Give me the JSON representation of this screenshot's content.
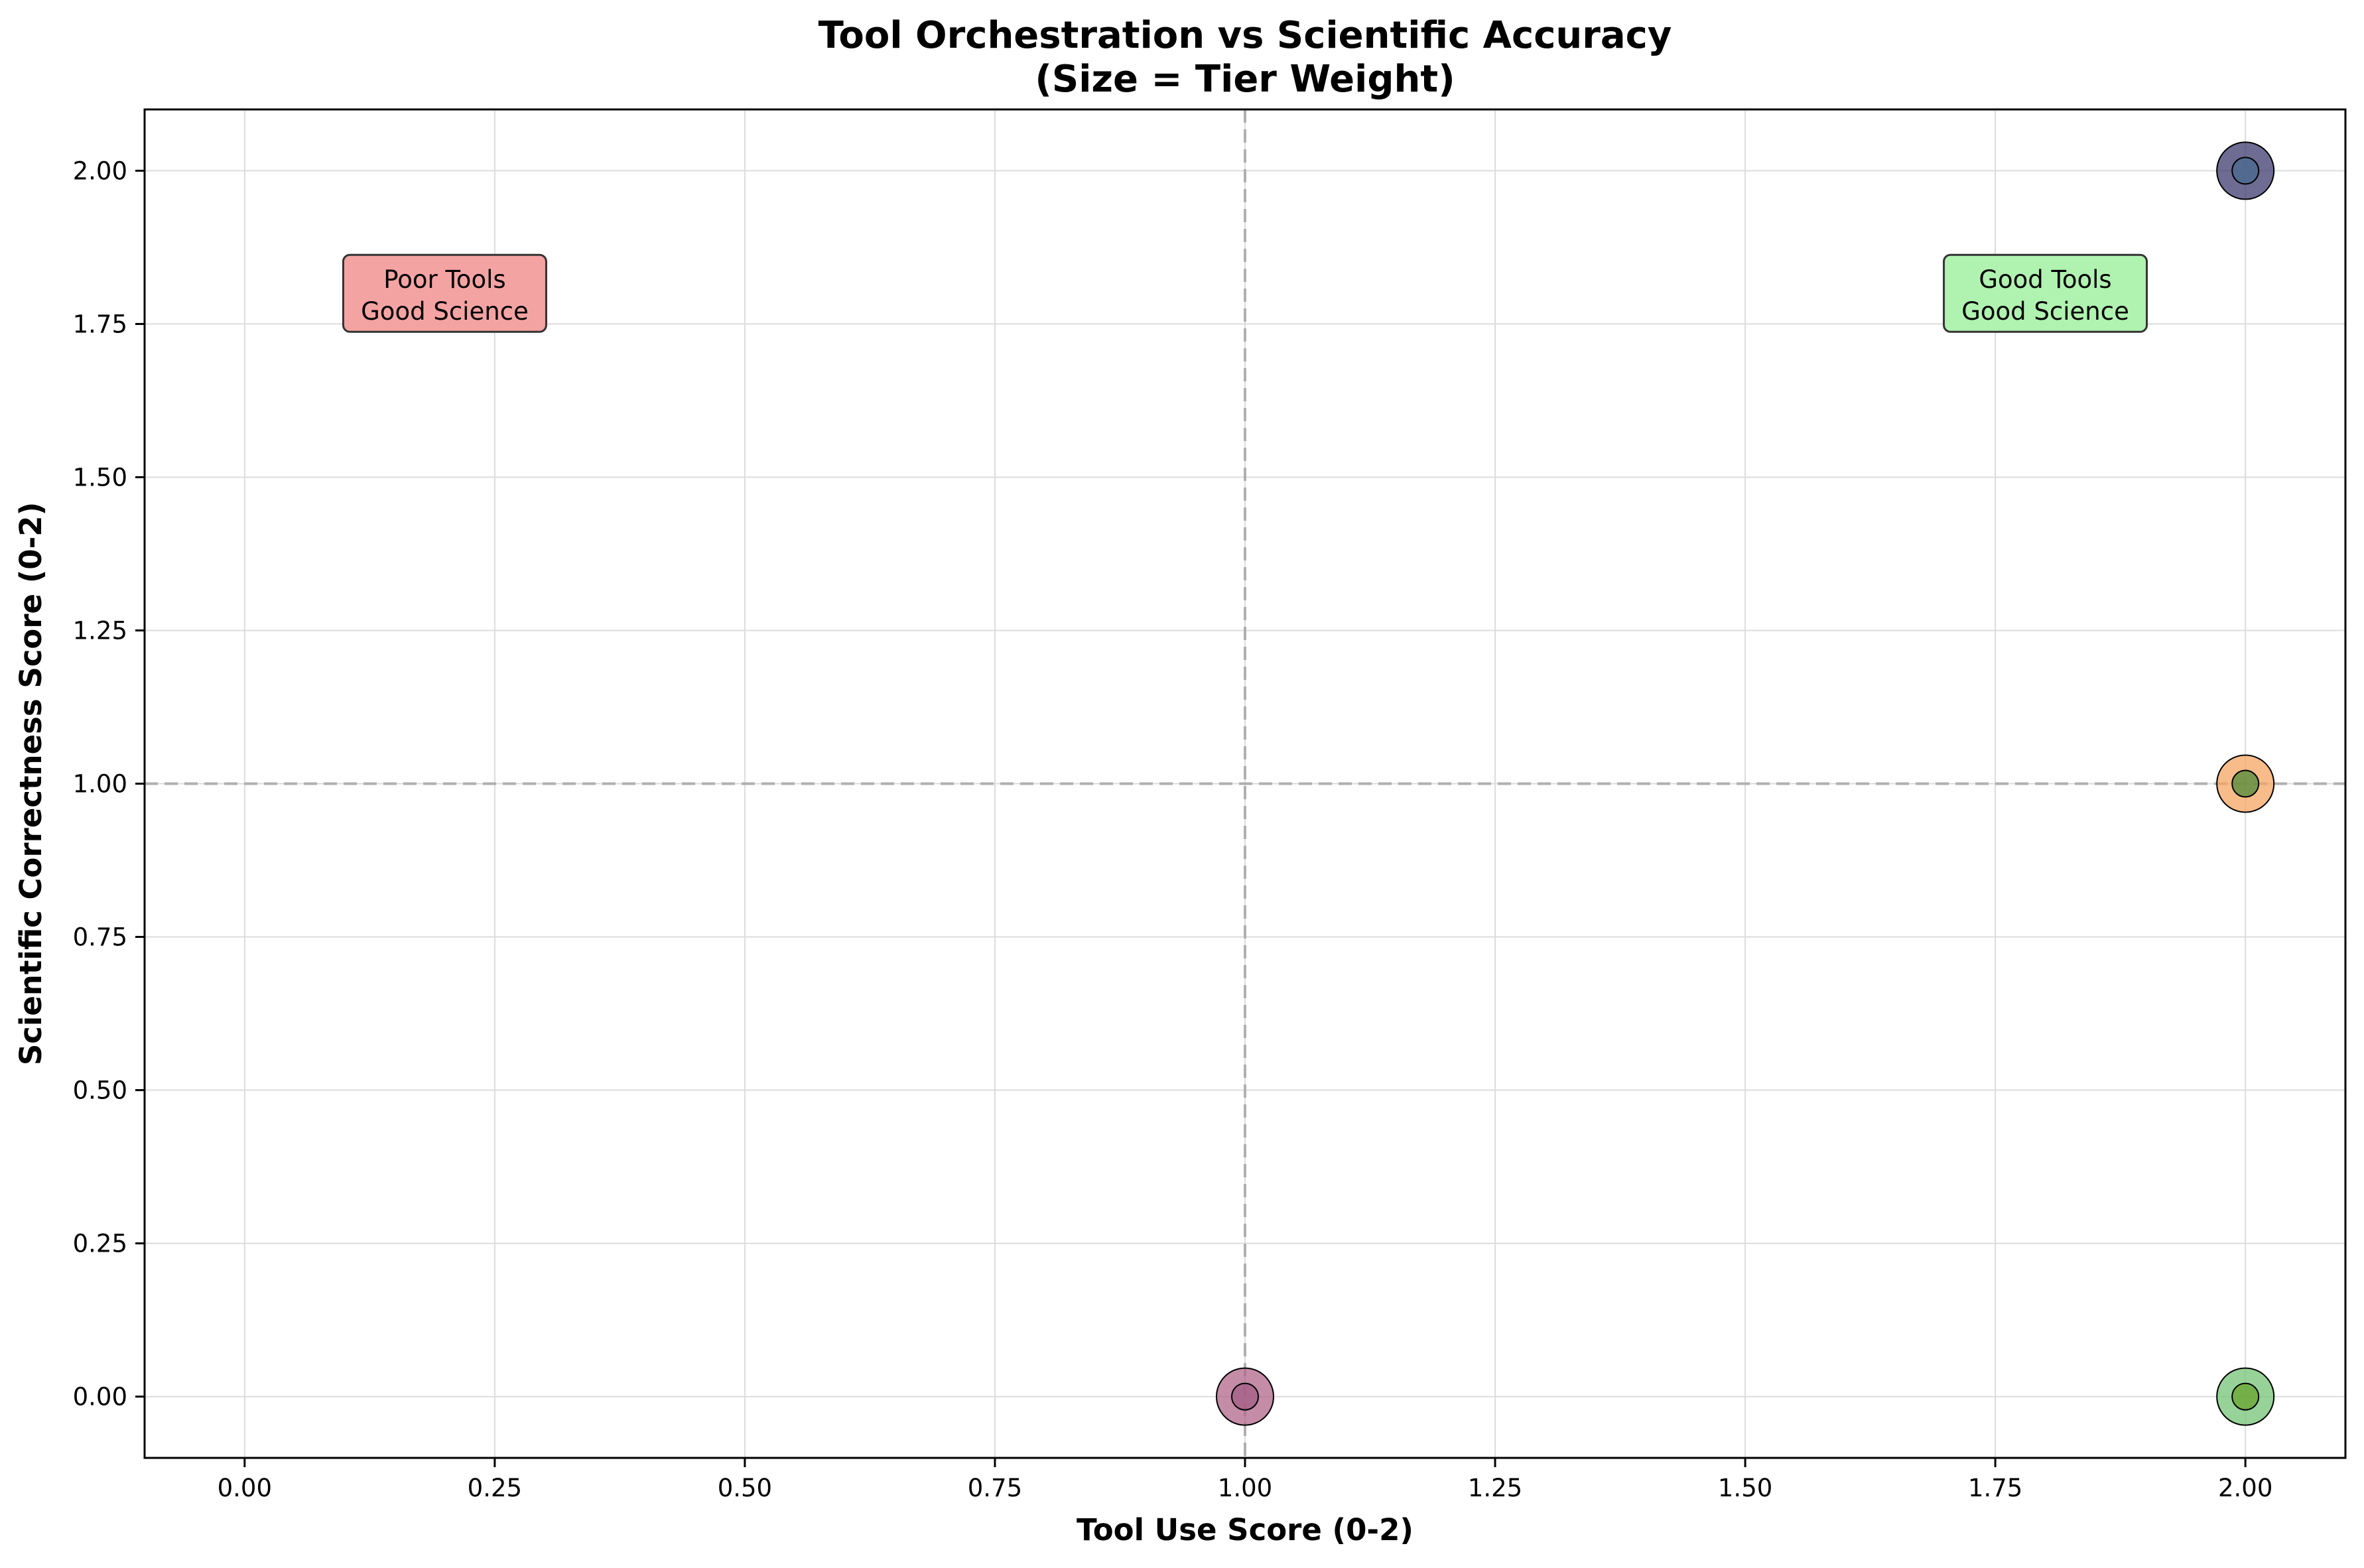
{
  "chart_data": {
    "type": "scatter",
    "title_line1": "Tool Orchestration vs Scientific Accuracy",
    "title_line2": "(Size = Tier Weight)",
    "xlabel": "Tool Use Score (0-2)",
    "ylabel": "Scientific Correctness Score (0-2)",
    "xlim": [
      -0.1,
      2.1
    ],
    "ylim": [
      -0.1,
      2.1
    ],
    "xticks": [
      0.0,
      0.25,
      0.5,
      0.75,
      1.0,
      1.25,
      1.5,
      1.75,
      2.0
    ],
    "yticks": [
      0.0,
      0.25,
      0.5,
      0.75,
      1.0,
      1.25,
      1.5,
      1.75,
      2.0
    ],
    "tick_format_decimals": 2,
    "grid": true,
    "reference_lines": {
      "x": 1.0,
      "y": 1.0,
      "style": "dashed",
      "color": "#b0b0b0"
    },
    "points": [
      {
        "x": 2.0,
        "y": 2.0,
        "size": "large",
        "color": "#3d3b6e"
      },
      {
        "x": 2.0,
        "y": 2.0,
        "size": "small",
        "color": "#4a6a8f"
      },
      {
        "x": 2.0,
        "y": 1.0,
        "size": "large",
        "color": "#f4a561"
      },
      {
        "x": 2.0,
        "y": 1.0,
        "size": "small",
        "color": "#4f8a3a"
      },
      {
        "x": 2.0,
        "y": 0.0,
        "size": "large",
        "color": "#74c476"
      },
      {
        "x": 2.0,
        "y": 0.0,
        "size": "small",
        "color": "#6aa32e"
      },
      {
        "x": 1.0,
        "y": 0.0,
        "size": "large",
        "color": "#b0668a"
      },
      {
        "x": 1.0,
        "y": 0.0,
        "size": "small",
        "color": "#a35e84"
      }
    ],
    "annotations": [
      {
        "line1": "Poor Tools",
        "line2": "Good Science",
        "x": 0.2,
        "y": 1.8,
        "bg": "#f4a3a3"
      },
      {
        "line1": "Good Tools",
        "line2": "Good Science",
        "x": 1.8,
        "y": 1.8,
        "bg": "#b0f2b0"
      }
    ]
  }
}
